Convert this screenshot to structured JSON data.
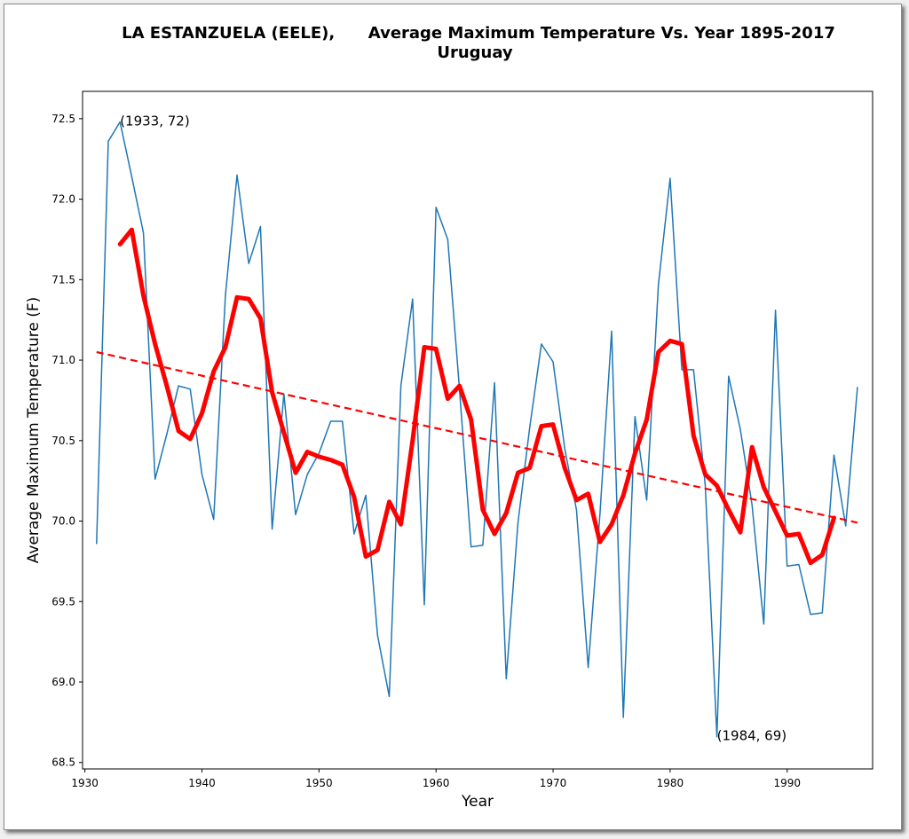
{
  "chart_data": {
    "type": "line",
    "title": "LA ESTANZUELA (EELE),      Average Maximum Temperature Vs. Year 1895-2017",
    "subtitle": "Uruguay",
    "xlabel": "Year",
    "ylabel": "Average Maximum Temperature (F)",
    "xlim": [
      1929.8,
      1997.3
    ],
    "ylim": [
      68.46,
      72.67
    ],
    "x_ticks": [
      1930,
      1940,
      1950,
      1960,
      1970,
      1980,
      1990
    ],
    "y_ticks": [
      68.5,
      69.0,
      69.5,
      70.0,
      70.5,
      71.0,
      71.5,
      72.0,
      72.5
    ],
    "grid": false,
    "series": [
      {
        "style": "thin-line",
        "color": "#1f77b4",
        "x": [
          1931,
          1932,
          1933,
          1934,
          1935,
          1936,
          1937,
          1938,
          1939,
          1940,
          1941,
          1942,
          1943,
          1944,
          1945,
          1946,
          1947,
          1948,
          1949,
          1950,
          1951,
          1952,
          1953,
          1954,
          1955,
          1956,
          1957,
          1958,
          1959,
          1960,
          1961,
          1962,
          1963,
          1964,
          1965,
          1966,
          1967,
          1968,
          1969,
          1970,
          1971,
          1972,
          1973,
          1974,
          1975,
          1976,
          1977,
          1978,
          1979,
          1980,
          1981,
          1982,
          1983,
          1984,
          1985,
          1986,
          1987,
          1988,
          1989,
          1990,
          1991,
          1992,
          1993,
          1994,
          1995,
          1996
        ],
        "values": [
          69.86,
          72.36,
          72.48,
          72.14,
          71.79,
          70.26,
          70.54,
          70.84,
          70.82,
          70.29,
          70.01,
          71.4,
          72.15,
          71.6,
          71.83,
          69.95,
          70.79,
          70.04,
          70.29,
          70.42,
          70.62,
          70.62,
          69.92,
          70.16,
          69.29,
          68.91,
          70.84,
          71.38,
          69.48,
          71.95,
          71.75,
          70.82,
          69.84,
          69.85,
          70.86,
          69.02,
          69.99,
          70.58,
          71.1,
          70.99,
          70.45,
          70.07,
          69.09,
          70.04,
          71.18,
          68.78,
          70.65,
          70.13,
          71.47,
          72.13,
          70.94,
          70.94,
          70.22,
          68.66,
          70.9,
          70.57,
          70.1,
          69.36,
          71.31,
          69.72,
          69.73,
          69.42,
          69.43,
          70.41,
          69.97,
          70.83
        ]
      },
      {
        "style": "thick-smoothed",
        "color": "#ff0000",
        "x": [
          1933,
          1934,
          1935,
          1936,
          1937,
          1938,
          1939,
          1940,
          1941,
          1942,
          1943,
          1944,
          1945,
          1946,
          1947,
          1948,
          1949,
          1950,
          1951,
          1952,
          1953,
          1954,
          1955,
          1956,
          1957,
          1958,
          1959,
          1960,
          1961,
          1962,
          1963,
          1964,
          1965,
          1966,
          1967,
          1968,
          1969,
          1970,
          1971,
          1972,
          1973,
          1974,
          1975,
          1976,
          1977,
          1978,
          1979,
          1980,
          1981,
          1982,
          1983,
          1984,
          1985,
          1986,
          1987,
          1988,
          1989,
          1990,
          1991,
          1992,
          1993,
          1994
        ],
        "values": [
          71.72,
          71.81,
          71.4,
          71.1,
          70.84,
          70.56,
          70.51,
          70.67,
          70.93,
          71.08,
          71.39,
          71.38,
          71.26,
          70.8,
          70.55,
          70.3,
          70.43,
          70.4,
          70.38,
          70.35,
          70.15,
          69.78,
          69.82,
          70.12,
          69.98,
          70.5,
          71.08,
          71.07,
          70.76,
          70.84,
          70.63,
          70.07,
          69.92,
          70.05,
          70.3,
          70.33,
          70.59,
          70.6,
          70.33,
          70.13,
          70.17,
          69.87,
          69.98,
          70.16,
          70.42,
          70.63,
          71.05,
          71.12,
          71.1,
          70.53,
          70.29,
          70.22,
          70.07,
          69.93,
          70.46,
          70.21,
          70.06,
          69.91,
          69.92,
          69.74,
          69.79,
          70.02
        ]
      },
      {
        "style": "dashed-trend",
        "color": "#ff0000",
        "x": [
          1931,
          1996
        ],
        "values": [
          71.05,
          69.99
        ]
      }
    ],
    "annotations": [
      {
        "text": "(1933, 72)",
        "x": 1933,
        "y": 72.48
      },
      {
        "text": "(1984, 69)",
        "x": 1984,
        "y": 68.66
      }
    ]
  }
}
